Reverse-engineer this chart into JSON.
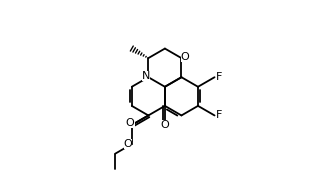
{
  "bg_color": "#ffffff",
  "line_color": "#000000",
  "bond_width": 1.3,
  "font_size": 7.5,
  "u": 0.098,
  "C8a": [
    0.52,
    0.555
  ],
  "label_F9": "F",
  "label_F10": "F",
  "label_N": "N",
  "label_O1": "O",
  "label_O_keto": "O",
  "label_O_carb": "O",
  "label_O_ester": "O"
}
